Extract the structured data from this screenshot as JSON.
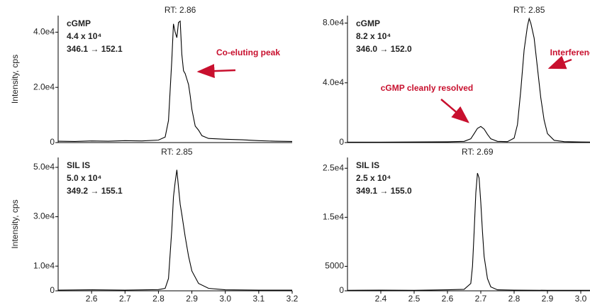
{
  "chart_data": [
    {
      "type": "line",
      "ylabel": "Intensity, cps",
      "annotations": [
        "cGMP",
        "4.4 x 10⁴",
        "346.1 → 152.1"
      ],
      "rt_label": "RT: 2.86",
      "callouts": [
        "Co-eluting peak"
      ],
      "xlim": [
        2.5,
        3.2
      ],
      "ylim": [
        0,
        46000
      ],
      "yticks": [
        0,
        {
          "value": 20000,
          "label": "2.0e4"
        },
        {
          "value": 40000,
          "label": "4.0e4"
        }
      ],
      "color": "#000000",
      "x": [
        2.5,
        2.55,
        2.6,
        2.65,
        2.7,
        2.75,
        2.8,
        2.82,
        2.83,
        2.84,
        2.845,
        2.85,
        2.855,
        2.86,
        2.865,
        2.87,
        2.875,
        2.88,
        2.885,
        2.89,
        2.895,
        2.9,
        2.91,
        2.92,
        2.93,
        2.95,
        3.0,
        3.05,
        3.1,
        3.15,
        3.2
      ],
      "values": [
        500,
        400,
        600,
        500,
        700,
        600,
        900,
        2000,
        8000,
        30000,
        43000,
        40000,
        38000,
        43500,
        44000,
        32000,
        26000,
        25000,
        23000,
        21000,
        17000,
        12000,
        6000,
        4500,
        2500,
        1500,
        1200,
        1000,
        700,
        500,
        400
      ]
    },
    {
      "type": "line",
      "ylabel": "Intensity, cps",
      "annotations": [
        "SIL IS",
        "5.0 x 10⁴",
        "349.2 → 155.1"
      ],
      "rt_label": "RT: 2.85",
      "callouts": [],
      "xlim": [
        2.5,
        3.2
      ],
      "ylim": [
        0,
        54000
      ],
      "yticks": [
        0,
        {
          "value": 10000,
          "label": "1.0e4"
        },
        {
          "value": 30000,
          "label": "3.0e4"
        },
        {
          "value": 50000,
          "label": "5.0e4"
        }
      ],
      "xticks": [
        2.6,
        2.7,
        2.8,
        2.9,
        {
          "value": 3,
          "label": "3.0"
        },
        3.1,
        3.2
      ],
      "color": "#000000",
      "x": [
        2.5,
        2.6,
        2.7,
        2.8,
        2.82,
        2.83,
        2.84,
        2.845,
        2.85,
        2.855,
        2.86,
        2.865,
        2.87,
        2.88,
        2.89,
        2.9,
        2.92,
        2.95,
        3.0,
        3.1,
        3.2
      ],
      "values": [
        300,
        400,
        300,
        500,
        1000,
        5000,
        25000,
        38000,
        44000,
        49000,
        42000,
        35000,
        31000,
        22000,
        14000,
        8000,
        3000,
        1000,
        400,
        300,
        300
      ]
    },
    {
      "type": "line",
      "annotations": [
        "cGMP",
        "8.2 x 10⁴",
        "346.0 → 152.0"
      ],
      "rt_label": "RT: 2.85",
      "callouts": [
        "cGMP cleanly resolved",
        "Interference"
      ],
      "xlim": [
        2.3,
        3.1
      ],
      "ylim": [
        0,
        85000
      ],
      "yticks": [
        0,
        {
          "value": 40000,
          "label": "4.0e4"
        },
        {
          "value": 80000,
          "label": "8.0e4"
        }
      ],
      "color": "#000000",
      "x": [
        2.3,
        2.4,
        2.5,
        2.6,
        2.65,
        2.67,
        2.68,
        2.69,
        2.7,
        2.71,
        2.72,
        2.73,
        2.75,
        2.78,
        2.8,
        2.81,
        2.82,
        2.83,
        2.84,
        2.845,
        2.85,
        2.86,
        2.87,
        2.88,
        2.89,
        2.9,
        2.92,
        2.95,
        3.0,
        3.1
      ],
      "values": [
        300,
        300,
        400,
        500,
        800,
        2500,
        6000,
        9500,
        10800,
        9000,
        5500,
        2500,
        800,
        600,
        3000,
        12000,
        35000,
        62000,
        78000,
        83000,
        80000,
        70000,
        50000,
        30000,
        15000,
        6000,
        1500,
        600,
        400,
        300
      ]
    },
    {
      "type": "line",
      "annotations": [
        "SIL IS",
        "2.5 x 10⁴",
        "349.1 → 155.0"
      ],
      "rt_label": "RT: 2.69",
      "callouts": [],
      "xlim": [
        2.3,
        3.1
      ],
      "ylim": [
        0,
        27200
      ],
      "yticks": [
        0,
        5000,
        {
          "value": 15000,
          "label": "1.5e4"
        },
        {
          "value": 25000,
          "label": "2.5e4"
        }
      ],
      "xticks": [
        2.4,
        2.5,
        2.6,
        2.7,
        2.8,
        2.9,
        {
          "value": 3,
          "label": "3.0"
        }
      ],
      "color": "#000000",
      "x": [
        2.3,
        2.4,
        2.5,
        2.6,
        2.65,
        2.67,
        2.675,
        2.68,
        2.685,
        2.69,
        2.695,
        2.7,
        2.705,
        2.71,
        2.72,
        2.73,
        2.75,
        2.8,
        2.9,
        3.0,
        3.1
      ],
      "values": [
        100,
        150,
        100,
        200,
        300,
        1500,
        5000,
        12000,
        20000,
        24000,
        23000,
        18000,
        12000,
        7000,
        2500,
        800,
        200,
        150,
        100,
        100,
        100
      ]
    }
  ]
}
